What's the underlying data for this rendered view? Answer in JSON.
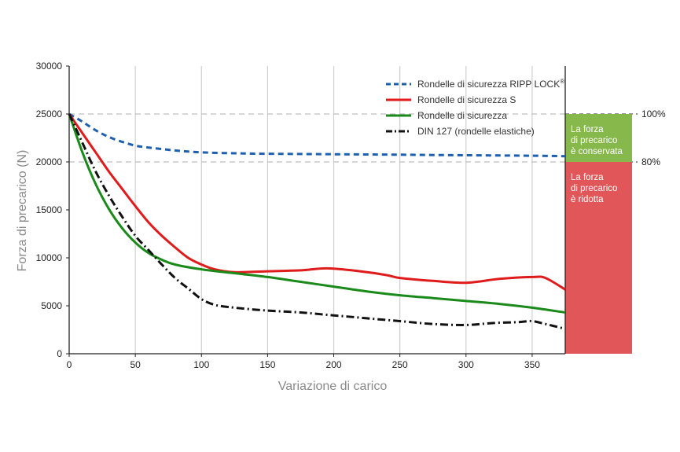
{
  "chart_data": {
    "type": "line",
    "xlabel": "Variazione di carico",
    "ylabel": "Forza di precarico (N)",
    "xlim": [
      0,
      375
    ],
    "ylim": [
      0,
      30000
    ],
    "x_ticks": [
      "0",
      "50",
      "100",
      "150",
      "200",
      "250",
      "300",
      "350"
    ],
    "y_ticks": [
      "0",
      "5000",
      "10000",
      "15000",
      "20000",
      "25000",
      "30000"
    ],
    "grid": "vertical",
    "legend_position": "top-right",
    "series": [
      {
        "name": "Rondelle di sicurezza  RIPP LOCK",
        "name_sup": "®",
        "color": "#1f5fb0",
        "style": "dashed",
        "x": [
          0,
          10,
          20,
          30,
          40,
          50,
          60,
          80,
          100,
          125,
          150,
          200,
          250,
          300,
          350,
          375
        ],
        "y": [
          25000,
          24200,
          23300,
          22600,
          22100,
          21700,
          21500,
          21200,
          21000,
          20900,
          20850,
          20800,
          20750,
          20700,
          20650,
          20600
        ]
      },
      {
        "name": "Rondelle di sicurezza S",
        "color": "#e01b1b",
        "style": "solid",
        "x": [
          0,
          10,
          20,
          30,
          40,
          50,
          60,
          70,
          80,
          90,
          100,
          110,
          125,
          150,
          175,
          195,
          220,
          240,
          250,
          275,
          300,
          325,
          350,
          360,
          375
        ],
        "y": [
          25000,
          23000,
          21000,
          19000,
          17200,
          15400,
          13700,
          12300,
          11100,
          10000,
          9300,
          8800,
          8500,
          8600,
          8700,
          8900,
          8600,
          8200,
          7900,
          7600,
          7400,
          7800,
          8000,
          7900,
          6700
        ]
      },
      {
        "name": "Rondelle di sicurezza",
        "color": "#1a8a1a",
        "style": "solid",
        "x": [
          0,
          10,
          20,
          30,
          40,
          50,
          60,
          70,
          80,
          100,
          125,
          150,
          175,
          200,
          225,
          250,
          275,
          300,
          325,
          350,
          375
        ],
        "y": [
          25000,
          21000,
          17700,
          15100,
          13100,
          11600,
          10500,
          9800,
          9300,
          8800,
          8400,
          8000,
          7500,
          7000,
          6500,
          6100,
          5800,
          5500,
          5200,
          4800,
          4300
        ]
      },
      {
        "name": "DIN 127 (rondelle elastiche)",
        "color": "#111111",
        "style": "dashdot",
        "x": [
          0,
          10,
          20,
          30,
          40,
          50,
          60,
          70,
          80,
          90,
          100,
          110,
          125,
          150,
          175,
          200,
          225,
          250,
          275,
          300,
          320,
          340,
          350,
          360,
          375
        ],
        "y": [
          25000,
          22000,
          19000,
          16500,
          14300,
          12300,
          10800,
          9300,
          7900,
          6800,
          5700,
          5100,
          4800,
          4500,
          4300,
          4000,
          3700,
          3400,
          3100,
          3000,
          3200,
          3300,
          3400,
          3100,
          2600
        ]
      }
    ],
    "reference_lines": [
      {
        "y": 25000,
        "label": "100%"
      },
      {
        "y": 20000,
        "label": "80%"
      }
    ],
    "bands": [
      {
        "from": 20000,
        "to": 25000,
        "color": "#86b84c",
        "text": [
          "La forza",
          "di precarico",
          "è conservata"
        ]
      },
      {
        "from": 0,
        "to": 20000,
        "color": "#e15759",
        "text": [
          "La forza",
          "di precarico",
          "è ridotta"
        ]
      }
    ]
  }
}
